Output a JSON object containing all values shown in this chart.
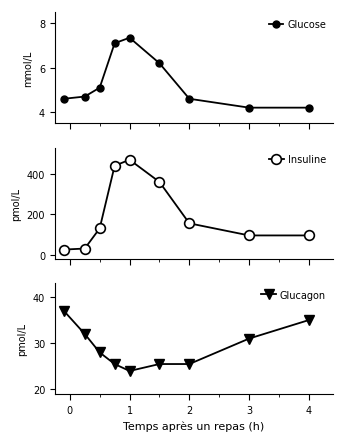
{
  "glucose_x": [
    -0.1,
    0.25,
    0.5,
    0.75,
    1.0,
    1.5,
    2.0,
    3.0,
    4.0
  ],
  "glucose_y": [
    4.6,
    4.7,
    5.1,
    7.1,
    7.35,
    6.2,
    4.6,
    4.2,
    4.2
  ],
  "glucose_ylabel": "mmol/L",
  "glucose_ylim": [
    3.5,
    8.5
  ],
  "glucose_yticks": [
    4,
    6,
    8
  ],
  "glucose_label": "Glucose",
  "insuline_x": [
    -0.1,
    0.25,
    0.5,
    0.75,
    1.0,
    1.5,
    2.0,
    3.0,
    4.0
  ],
  "insuline_y": [
    25,
    30,
    130,
    440,
    470,
    360,
    155,
    95,
    95
  ],
  "insuline_ylabel": "pmol/L",
  "insuline_ylim": [
    -20,
    530
  ],
  "insuline_yticks": [
    0,
    200,
    400
  ],
  "insuline_label": "Insuline",
  "glucagon_x": [
    -0.1,
    0.25,
    0.5,
    0.75,
    1.0,
    1.5,
    2.0,
    3.0,
    4.0
  ],
  "glucagon_y": [
    37,
    32,
    28,
    25.5,
    24,
    25.5,
    25.5,
    31,
    35
  ],
  "glucagon_ylabel": "pmol/L",
  "glucagon_ylim": [
    19,
    43
  ],
  "glucagon_yticks": [
    20,
    30,
    40
  ],
  "glucagon_label": "Glucagon",
  "xlabel": "Temps après un repas (h)",
  "xticks": [
    0,
    1,
    2,
    3,
    4
  ],
  "xlim": [
    -0.25,
    4.4
  ],
  "line_color": "black",
  "marker_filled": "o",
  "marker_open": "o",
  "marker_down": "v",
  "markersize_filled": 5,
  "markersize_open": 7,
  "markersize_down": 7,
  "linewidth": 1.3,
  "fontsize_label": 7,
  "fontsize_axis": 7,
  "fontsize_legend": 7,
  "fontsize_xlabel": 8
}
